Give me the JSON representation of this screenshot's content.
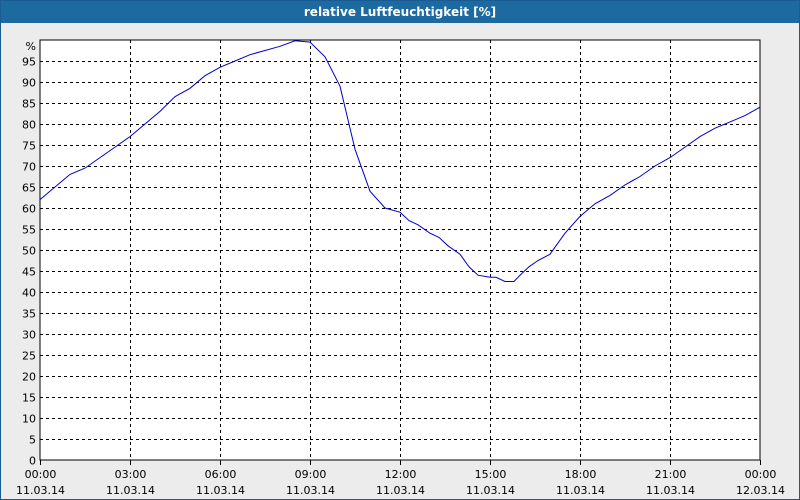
{
  "window": {
    "title": "relative Luftfeuchtigkeit [%]"
  },
  "chart_data": {
    "type": "line",
    "title": "relative Luftfeuchtigkeit [%]",
    "ylabel": "%",
    "xlabel": "",
    "ylim": [
      0,
      100
    ],
    "grid": true,
    "yticks": [
      0,
      5,
      10,
      15,
      20,
      25,
      30,
      35,
      40,
      45,
      50,
      55,
      60,
      65,
      70,
      75,
      80,
      85,
      90,
      95
    ],
    "xticks": [
      {
        "hour": 0,
        "time": "00:00",
        "date": "11.03.14"
      },
      {
        "hour": 3,
        "time": "03:00",
        "date": "11.03.14"
      },
      {
        "hour": 6,
        "time": "06:00",
        "date": "11.03.14"
      },
      {
        "hour": 9,
        "time": "09:00",
        "date": "11.03.14"
      },
      {
        "hour": 12,
        "time": "12:00",
        "date": "11.03.14"
      },
      {
        "hour": 15,
        "time": "15:00",
        "date": "11.03.14"
      },
      {
        "hour": 18,
        "time": "18:00",
        "date": "11.03.14"
      },
      {
        "hour": 21,
        "time": "21:00",
        "date": "11.03.14"
      },
      {
        "hour": 24,
        "time": "00:00",
        "date": "12.03.14"
      }
    ],
    "xlim": [
      0,
      24
    ],
    "colors": {
      "line": "#0000cc",
      "grid": "#000000"
    },
    "series": [
      {
        "x": [
          0,
          0.5,
          1.0,
          1.5,
          2.0,
          2.5,
          3.0,
          3.5,
          4.0,
          4.5,
          5.0,
          5.5,
          6.0,
          6.5,
          7.0,
          7.5,
          8.0,
          8.5,
          9.0,
          9.5,
          10.0,
          10.5,
          11.0,
          11.5,
          12.0,
          12.3,
          12.6,
          13.0,
          13.3,
          13.6,
          14.0,
          14.3,
          14.6,
          15.0,
          15.2,
          15.5,
          15.8,
          16.0,
          16.3,
          16.6,
          17.0,
          17.5,
          18.0,
          18.5,
          19.0,
          19.5,
          20.0,
          20.5,
          21.0,
          21.5,
          22.0,
          22.5,
          23.0,
          23.5,
          24.0
        ],
        "y": [
          62,
          65,
          68,
          69.5,
          72,
          74.5,
          77,
          80,
          83,
          86.5,
          88.5,
          91.5,
          93.5,
          95,
          96.5,
          97.5,
          98.5,
          99.8,
          99.5,
          96,
          89,
          74,
          64,
          60,
          59,
          57,
          56,
          54,
          53,
          51,
          49,
          46,
          44,
          43.5,
          43.5,
          42.5,
          42.5,
          44,
          46,
          47.5,
          49,
          54,
          58,
          61,
          63,
          65.5,
          67.5,
          70,
          72,
          74.5,
          77,
          79,
          80.5,
          82,
          84
        ]
      }
    ]
  }
}
